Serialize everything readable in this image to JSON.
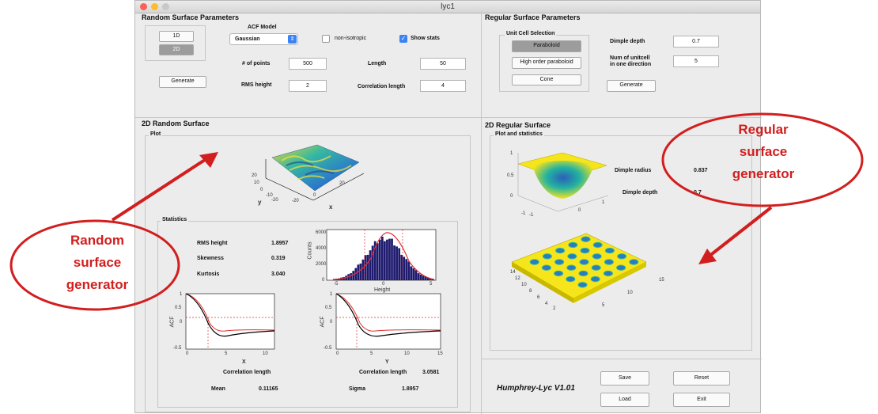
{
  "window": {
    "title": "lyc1"
  },
  "random_params": {
    "heading": "Random Surface Parameters",
    "btn_1d": "1D",
    "btn_2d": "2D",
    "generate": "Generate",
    "acf_model_label": "ACF Model",
    "acf_model_value": "Gaussian",
    "non_isotropic_label": "non-isotropic",
    "non_isotropic_checked": false,
    "show_stats_label": "Show stats",
    "show_stats_checked": true,
    "num_points_label": "# of points",
    "num_points_value": "500",
    "length_label": "Length",
    "length_value": "50",
    "rms_height_label": "RMS height",
    "rms_height_value": "2",
    "corr_length_label": "Correlation length",
    "corr_length_value": "4"
  },
  "regular_params": {
    "heading": "Regular Surface Parameters",
    "unit_cell_label": "Unit Cell Selection",
    "paraboloid": "Paraboloid",
    "high_order": "High order paraboloid",
    "cone": "Cone",
    "dimple_depth_label": "Dimple depth",
    "dimple_depth_value": "0.7",
    "num_unitcell_label_1": "Num of unitcell",
    "num_unitcell_label_2": "in one direction",
    "num_unitcell_value": "5",
    "generate": "Generate"
  },
  "random_surface": {
    "heading": "2D Random Surface",
    "plot_label": "Plot",
    "statistics_label": "Statistics",
    "rms_height_label": "RMS height",
    "rms_height_value": "1.8957",
    "skewness_label": "Skewness",
    "skewness_value": "0.319",
    "kurtosis_label": "Kurtosis",
    "kurtosis_value": "3.040",
    "corr_length_label": "Correlation length",
    "corr_length_value": "3.0581",
    "mean_label": "Mean",
    "mean_value": "0.11165",
    "sigma_label": "Sigma",
    "sigma_value": "1.8957",
    "surface_axis_y": "y",
    "surface_axis_x": "x",
    "surface_ticks": [
      "20",
      "10",
      "0",
      "-10",
      "-20",
      "-20",
      "0",
      "20"
    ],
    "hist_ylabel": "Counts",
    "hist_xlabel": "Height",
    "hist_yticks": [
      "6000",
      "4000",
      "2000",
      "0"
    ],
    "hist_xticks": [
      "-5",
      "0",
      "5"
    ],
    "acf_x_ylabel": "ACF",
    "acf_x_xlabel": "X",
    "acf_x_xticks": [
      "0",
      "5",
      "10"
    ],
    "acf_x_yticks": [
      "1",
      "0.5",
      "0",
      "-0.5"
    ],
    "acf_y_ylabel": "ACF",
    "acf_y_xlabel": "Y",
    "acf_y_xticks": [
      "0",
      "5",
      "10",
      "15"
    ],
    "acf_y_yticks": [
      "1",
      "0.5",
      "0",
      "-0.5"
    ]
  },
  "regular_surface": {
    "heading": "2D Regular Surface",
    "plot_label": "Plot and statistics",
    "dimple_radius_label": "Dimple radius",
    "dimple_radius_value": "0.837",
    "dimple_depth_label": "Dimple depth",
    "dimple_depth_value": "0.7",
    "dimple_zticks": [
      "1",
      "0.5",
      "0"
    ],
    "dimple_ticks": [
      "-1",
      "-1",
      "0",
      "1"
    ],
    "array_ticks_left": [
      "14",
      "12",
      "10",
      "8",
      "6",
      "4",
      "2"
    ],
    "array_ticks_right": [
      "15",
      "10",
      "5"
    ]
  },
  "footer": {
    "version": "Humphrey-Lyc V1.01",
    "save": "Save",
    "reset": "Reset",
    "load": "Load",
    "exit": "Exit"
  },
  "callouts": {
    "random_1": "Random",
    "random_2": "surface",
    "random_3": "generator",
    "regular_1": "Regular",
    "regular_2": "surface",
    "regular_3": "generator"
  },
  "colors": {
    "accent_red": "#d21e1e",
    "surface_yellow": "#f5e51a",
    "dimple_blue": "#2a7bbf",
    "hist_bar": "#1e1a6e"
  }
}
